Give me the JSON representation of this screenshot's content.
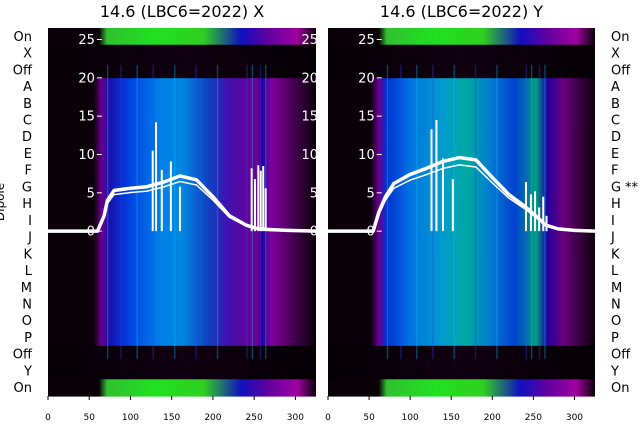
{
  "chart_data": [
    {
      "type": "heatmap",
      "title": "14.6 (LBC6=2022) X",
      "ylabel": "Dipole",
      "row_labels": [
        "On",
        "X",
        "Off",
        "A",
        "B",
        "C",
        "D",
        "E",
        "F",
        "G",
        "H",
        "I",
        "J",
        "K",
        "L",
        "M",
        "N",
        "O",
        "P",
        "Off",
        "Y",
        "On"
      ],
      "x_ticks": [
        0,
        50,
        100,
        150,
        200,
        250,
        300
      ],
      "xlim": [
        0,
        325
      ],
      "overlay_y_ticks": [
        0,
        5,
        10,
        15,
        20,
        25
      ],
      "overlay_ylim": [
        -21.5,
        26.5
      ],
      "profile": [
        [
          0,
          0
        ],
        [
          60,
          0
        ],
        [
          68,
          2
        ],
        [
          72,
          4
        ],
        [
          80,
          5.3
        ],
        [
          100,
          5.6
        ],
        [
          120,
          5.8
        ],
        [
          140,
          6.4
        ],
        [
          160,
          7.2
        ],
        [
          180,
          6.7
        ],
        [
          200,
          4.5
        ],
        [
          220,
          2
        ],
        [
          240,
          0.8
        ],
        [
          255,
          0.3
        ],
        [
          270,
          0.2
        ],
        [
          290,
          0.1
        ],
        [
          325,
          0
        ]
      ],
      "spikes": [
        [
          127,
          10.5
        ],
        [
          131,
          14.2
        ],
        [
          138,
          8
        ],
        [
          149,
          9.1
        ],
        [
          160,
          5.8
        ],
        [
          247,
          8.2
        ],
        [
          251,
          6.8
        ],
        [
          255,
          8.6
        ],
        [
          258,
          7.9
        ],
        [
          261,
          8.5
        ],
        [
          264,
          5.6
        ]
      ]
    },
    {
      "type": "heatmap",
      "title": "14.6 (LBC6=2022) Y",
      "row_labels": [
        "On",
        "X",
        "Off",
        "A",
        "B",
        "C",
        "D",
        "E",
        "F",
        "G",
        "H",
        "I",
        "J",
        "K",
        "L",
        "M",
        "N",
        "O",
        "P",
        "Off",
        "Y",
        "On"
      ],
      "row_annotations": {
        "G": "**"
      },
      "x_ticks": [
        0,
        50,
        100,
        150,
        200,
        250,
        300
      ],
      "xlim": [
        0,
        325
      ],
      "overlay_y_ticks": [
        0,
        5,
        10,
        15,
        20,
        25
      ],
      "overlay_ylim": [
        -21.5,
        26.5
      ],
      "profile": [
        [
          0,
          0
        ],
        [
          55,
          0
        ],
        [
          62,
          2.5
        ],
        [
          70,
          4.5
        ],
        [
          80,
          6.2
        ],
        [
          100,
          7.4
        ],
        [
          120,
          8.2
        ],
        [
          140,
          9.1
        ],
        [
          160,
          9.6
        ],
        [
          180,
          9.3
        ],
        [
          200,
          7
        ],
        [
          220,
          4.8
        ],
        [
          240,
          3.2
        ],
        [
          255,
          1.8
        ],
        [
          265,
          0.8
        ],
        [
          280,
          0.3
        ],
        [
          300,
          0.1
        ],
        [
          325,
          0
        ]
      ],
      "spikes": [
        [
          126,
          13.3
        ],
        [
          132,
          14.5
        ],
        [
          140,
          9.5
        ],
        [
          152,
          6.8
        ],
        [
          241,
          6.4
        ],
        [
          247,
          4.8
        ],
        [
          252,
          5.2
        ],
        [
          257,
          3.1
        ],
        [
          262,
          4.5
        ],
        [
          266,
          2
        ]
      ]
    }
  ]
}
